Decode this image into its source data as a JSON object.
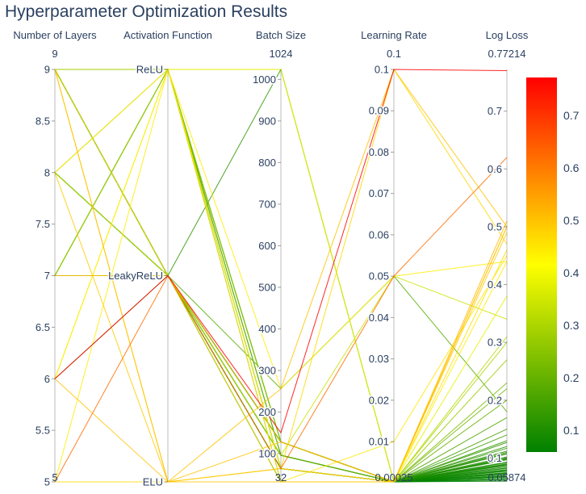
{
  "chart_data": {
    "type": "parallel_coordinates",
    "title": "Hyperparameter Optimization Results",
    "dimensions": [
      {
        "label": "Number of Layers",
        "range": [
          5,
          9
        ],
        "range_labels": [
          "5",
          "9"
        ],
        "ticks": [
          {
            "v": 5,
            "t": "5"
          },
          {
            "v": 5.5,
            "t": "5.5"
          },
          {
            "v": 6,
            "t": "6"
          },
          {
            "v": 6.5,
            "t": "6.5"
          },
          {
            "v": 7,
            "t": "7"
          },
          {
            "v": 7.5,
            "t": "7.5"
          },
          {
            "v": 8,
            "t": "8"
          },
          {
            "v": 8.5,
            "t": "8.5"
          },
          {
            "v": 9,
            "t": "9"
          }
        ]
      },
      {
        "label": "Activation Function",
        "range": [
          0,
          2
        ],
        "range_labels": [
          "",
          ""
        ],
        "ticks": [
          {
            "v": 0,
            "t": "ELU"
          },
          {
            "v": 1,
            "t": "LeakyReLU"
          },
          {
            "v": 2,
            "t": "ReLU"
          }
        ]
      },
      {
        "label": "Batch Size",
        "range": [
          32,
          1024
        ],
        "range_labels": [
          "32",
          "1024"
        ],
        "ticks": [
          {
            "v": 100,
            "t": "100"
          },
          {
            "v": 200,
            "t": "200"
          },
          {
            "v": 300,
            "t": "300"
          },
          {
            "v": 400,
            "t": "400"
          },
          {
            "v": 500,
            "t": "500"
          },
          {
            "v": 600,
            "t": "600"
          },
          {
            "v": 700,
            "t": "700"
          },
          {
            "v": 800,
            "t": "800"
          },
          {
            "v": 900,
            "t": "900"
          },
          {
            "v": 1000,
            "t": "1000"
          }
        ]
      },
      {
        "label": "Learning Rate",
        "range": [
          0.00025,
          0.1
        ],
        "range_labels": [
          "0.00025",
          "0.1"
        ],
        "ticks": [
          {
            "v": 0.01,
            "t": "0.01"
          },
          {
            "v": 0.02,
            "t": "0.02"
          },
          {
            "v": 0.03,
            "t": "0.03"
          },
          {
            "v": 0.04,
            "t": "0.04"
          },
          {
            "v": 0.05,
            "t": "0.05"
          },
          {
            "v": 0.06,
            "t": "0.06"
          },
          {
            "v": 0.07,
            "t": "0.07"
          },
          {
            "v": 0.08,
            "t": "0.08"
          },
          {
            "v": 0.09,
            "t": "0.09"
          },
          {
            "v": 0.1,
            "t": "0.1"
          }
        ]
      },
      {
        "label": "Log Loss",
        "range": [
          0.05874,
          0.77214
        ],
        "range_labels": [
          "0.05874",
          "0.77214"
        ],
        "ticks": [
          {
            "v": 0.1,
            "t": "0.1"
          },
          {
            "v": 0.2,
            "t": "0.2"
          },
          {
            "v": 0.3,
            "t": "0.3"
          },
          {
            "v": 0.4,
            "t": "0.4"
          },
          {
            "v": 0.5,
            "t": "0.5"
          },
          {
            "v": 0.6,
            "t": "0.6"
          },
          {
            "v": 0.7,
            "t": "0.7"
          }
        ]
      }
    ],
    "colorscale": [
      "#008000",
      "#ffff00",
      "#ff0000"
    ],
    "colorbar": {
      "range": [
        0.05874,
        0.77214
      ],
      "ticks": [
        {
          "v": 0.1,
          "t": "0.1"
        },
        {
          "v": 0.2,
          "t": "0.2"
        },
        {
          "v": 0.3,
          "t": "0.3"
        },
        {
          "v": 0.4,
          "t": "0.4"
        },
        {
          "v": 0.5,
          "t": "0.5"
        },
        {
          "v": 0.6,
          "t": "0.6"
        },
        {
          "v": 0.7,
          "t": "0.7"
        }
      ]
    },
    "records": [
      [
        6,
        1,
        150,
        0.1,
        0.77
      ],
      [
        5,
        1,
        64,
        0.05,
        0.62
      ],
      [
        9,
        0,
        64,
        0.00025,
        0.5
      ],
      [
        9,
        0,
        128,
        0.00025,
        0.5
      ],
      [
        8,
        0,
        32,
        0.00025,
        0.49
      ],
      [
        7,
        1,
        128,
        0.00025,
        0.51
      ],
      [
        6,
        2,
        256,
        0.05,
        0.44
      ],
      [
        6,
        0,
        256,
        0.1,
        0.5
      ],
      [
        5,
        0,
        64,
        0.1,
        0.47
      ],
      [
        9,
        1,
        32,
        0.00025,
        0.46
      ],
      [
        8,
        2,
        32,
        0.01,
        0.45
      ],
      [
        6,
        2,
        1024,
        0.00025,
        0.38
      ],
      [
        5,
        2,
        64,
        0.00025,
        0.44
      ],
      [
        8,
        1,
        96,
        0.05,
        0.34
      ],
      [
        9,
        2,
        1024,
        0.00025,
        0.3
      ],
      [
        7,
        2,
        64,
        0.00025,
        0.31
      ],
      [
        8,
        2,
        128,
        0.00025,
        0.27
      ],
      [
        9,
        2,
        96,
        0.00025,
        0.23
      ],
      [
        7,
        2,
        128,
        0.00025,
        0.2
      ],
      [
        9,
        1,
        64,
        0.00025,
        0.22
      ],
      [
        7,
        1,
        256,
        0.05,
        0.18
      ],
      [
        8,
        1,
        128,
        0.00025,
        0.17
      ],
      [
        9,
        2,
        32,
        0.00025,
        0.15
      ],
      [
        7,
        1,
        64,
        0.00025,
        0.14
      ],
      [
        6,
        1,
        96,
        0.00025,
        0.13
      ],
      [
        8,
        1,
        1024,
        0.00025,
        0.12
      ],
      [
        9,
        1,
        64,
        0.00025,
        0.11
      ],
      [
        7,
        2,
        96,
        0.00025,
        0.1
      ],
      [
        9,
        2,
        64,
        0.00025,
        0.09
      ],
      [
        7,
        1,
        64,
        0.00025,
        0.085
      ],
      [
        9,
        1,
        96,
        0.00025,
        0.08
      ],
      [
        8,
        1,
        128,
        0.00025,
        0.075
      ],
      [
        7,
        1,
        64,
        0.00025,
        0.07
      ],
      [
        9,
        1,
        128,
        0.00025,
        0.065
      ],
      [
        7,
        1,
        96,
        0.00025,
        0.06
      ],
      [
        9,
        2,
        128,
        0.00025,
        0.072
      ],
      [
        7,
        1,
        64,
        0.00025,
        0.082
      ],
      [
        9,
        1,
        32,
        0.00025,
        0.092
      ],
      [
        7,
        2,
        64,
        0.00025,
        0.102
      ],
      [
        9,
        1,
        128,
        0.00025,
        0.112
      ],
      [
        7,
        1,
        96,
        0.00025,
        0.067
      ],
      [
        9,
        2,
        64,
        0.00025,
        0.077
      ],
      [
        8,
        1,
        96,
        0.00025,
        0.087
      ],
      [
        7,
        1,
        128,
        0.00025,
        0.097
      ],
      [
        9,
        1,
        64,
        0.00025,
        0.107
      ],
      [
        7,
        2,
        128,
        0.00025,
        0.117
      ],
      [
        9,
        1,
        96,
        0.00025,
        0.127
      ],
      [
        7,
        1,
        64,
        0.00025,
        0.062
      ],
      [
        9,
        1,
        128,
        0.00025,
        0.068
      ],
      [
        7,
        1,
        96,
        0.00025,
        0.078
      ],
      [
        9,
        2,
        96,
        0.00025,
        0.088
      ],
      [
        7,
        1,
        128,
        0.00025,
        0.098
      ],
      [
        8,
        1,
        64,
        0.00025,
        0.108
      ],
      [
        7,
        1,
        128,
        0.00025,
        0.073
      ],
      [
        9,
        1,
        96,
        0.00025,
        0.083
      ],
      [
        7,
        1,
        64,
        0.00025,
        0.093
      ],
      [
        9,
        2,
        128,
        0.00025,
        0.063
      ],
      [
        7,
        1,
        32,
        0.00025,
        0.069
      ],
      [
        9,
        1,
        64,
        0.00025,
        0.079
      ],
      [
        7,
        1,
        96,
        0.00025,
        0.089
      ],
      [
        8,
        1,
        128,
        0.00025,
        0.099
      ],
      [
        7,
        1,
        64,
        0.00025,
        0.074
      ]
    ]
  }
}
